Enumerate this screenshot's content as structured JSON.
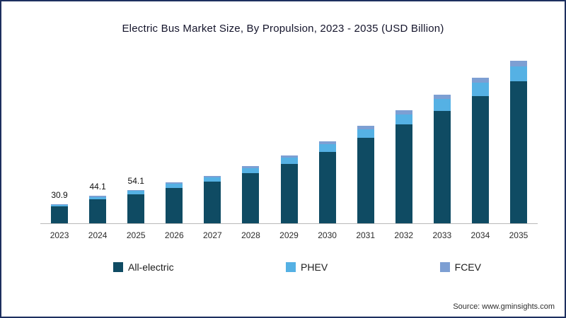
{
  "footer": {
    "source": "Source: www.gminsights.com"
  },
  "chart_data": {
    "type": "bar",
    "stacked": true,
    "title": "Electric Bus Market Size, By Propulsion, 2023 - 2035 (USD Billion)",
    "xlabel": "",
    "ylabel": "",
    "ylim": [
      0,
      280
    ],
    "grid": false,
    "legend_position": "bottom",
    "categories": [
      "2023",
      "2024",
      "2025",
      "2026",
      "2027",
      "2028",
      "2029",
      "2030",
      "2031",
      "2032",
      "2033",
      "2034",
      "2035"
    ],
    "series": [
      {
        "key": "all-electric",
        "name": "All-electric",
        "color": "#0f4b63",
        "values": [
          27.0,
          38.5,
          47.2,
          57.5,
          67.0,
          81.0,
          96.0,
          116.0,
          138.0,
          160.0,
          182.0,
          206.0,
          230.0
        ]
      },
      {
        "key": "phev",
        "name": "PHEV",
        "color": "#55b1e4",
        "values": [
          2.8,
          4.0,
          4.9,
          6.0,
          7.1,
          8.5,
          10.0,
          12.0,
          14.3,
          16.5,
          18.7,
          21.2,
          23.6
        ]
      },
      {
        "key": "fcev",
        "name": "FCEV",
        "color": "#7d9fd3",
        "values": [
          1.1,
          1.6,
          2.0,
          2.5,
          2.9,
          3.5,
          4.0,
          5.0,
          5.7,
          6.5,
          7.3,
          8.8,
          9.4
        ]
      }
    ],
    "value_labels": {
      "2023": "30.9",
      "2024": "44.1",
      "2025": "54.1"
    },
    "totals_labeled": [
      30.9,
      44.1,
      54.1
    ]
  }
}
